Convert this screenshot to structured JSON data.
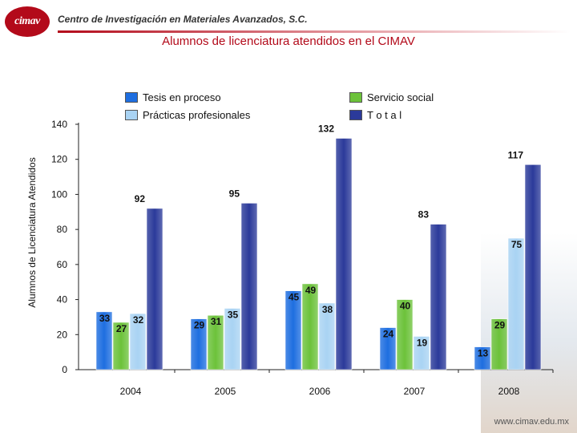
{
  "header": {
    "logo_text": "cimav",
    "org_name": "Centro de Investigación en Materiales Avanzados, S.C."
  },
  "footer": {
    "url": "www.cimav.edu.mx"
  },
  "colors": {
    "tesis": "#1e6ee0",
    "servicio": "#6cc23a",
    "practicas": "#a9d3f3",
    "total": "#2b3a9a",
    "title": "#b30a1a"
  },
  "chart_data": {
    "type": "bar",
    "title": "Alumnos de licenciatura atendidos en el CIMAV",
    "xlabel": "",
    "ylabel": "Alumnos de Licenciatura Atendidos",
    "ylim": [
      0,
      140
    ],
    "yticks": [
      0,
      20,
      40,
      60,
      80,
      100,
      120,
      140
    ],
    "grid": false,
    "legend_position": "top",
    "categories": [
      "2004",
      "2005",
      "2006",
      "2007",
      "2008"
    ],
    "series": [
      {
        "name": "Tesis en proceso",
        "values": [
          33,
          29,
          45,
          24,
          13
        ]
      },
      {
        "name": "Servicio social",
        "values": [
          27,
          31,
          49,
          40,
          29
        ]
      },
      {
        "name": "Prácticas profesionales",
        "values": [
          32,
          35,
          38,
          19,
          75
        ]
      },
      {
        "name": "T o t a l",
        "values": [
          92,
          95,
          132,
          83,
          117
        ]
      }
    ]
  }
}
